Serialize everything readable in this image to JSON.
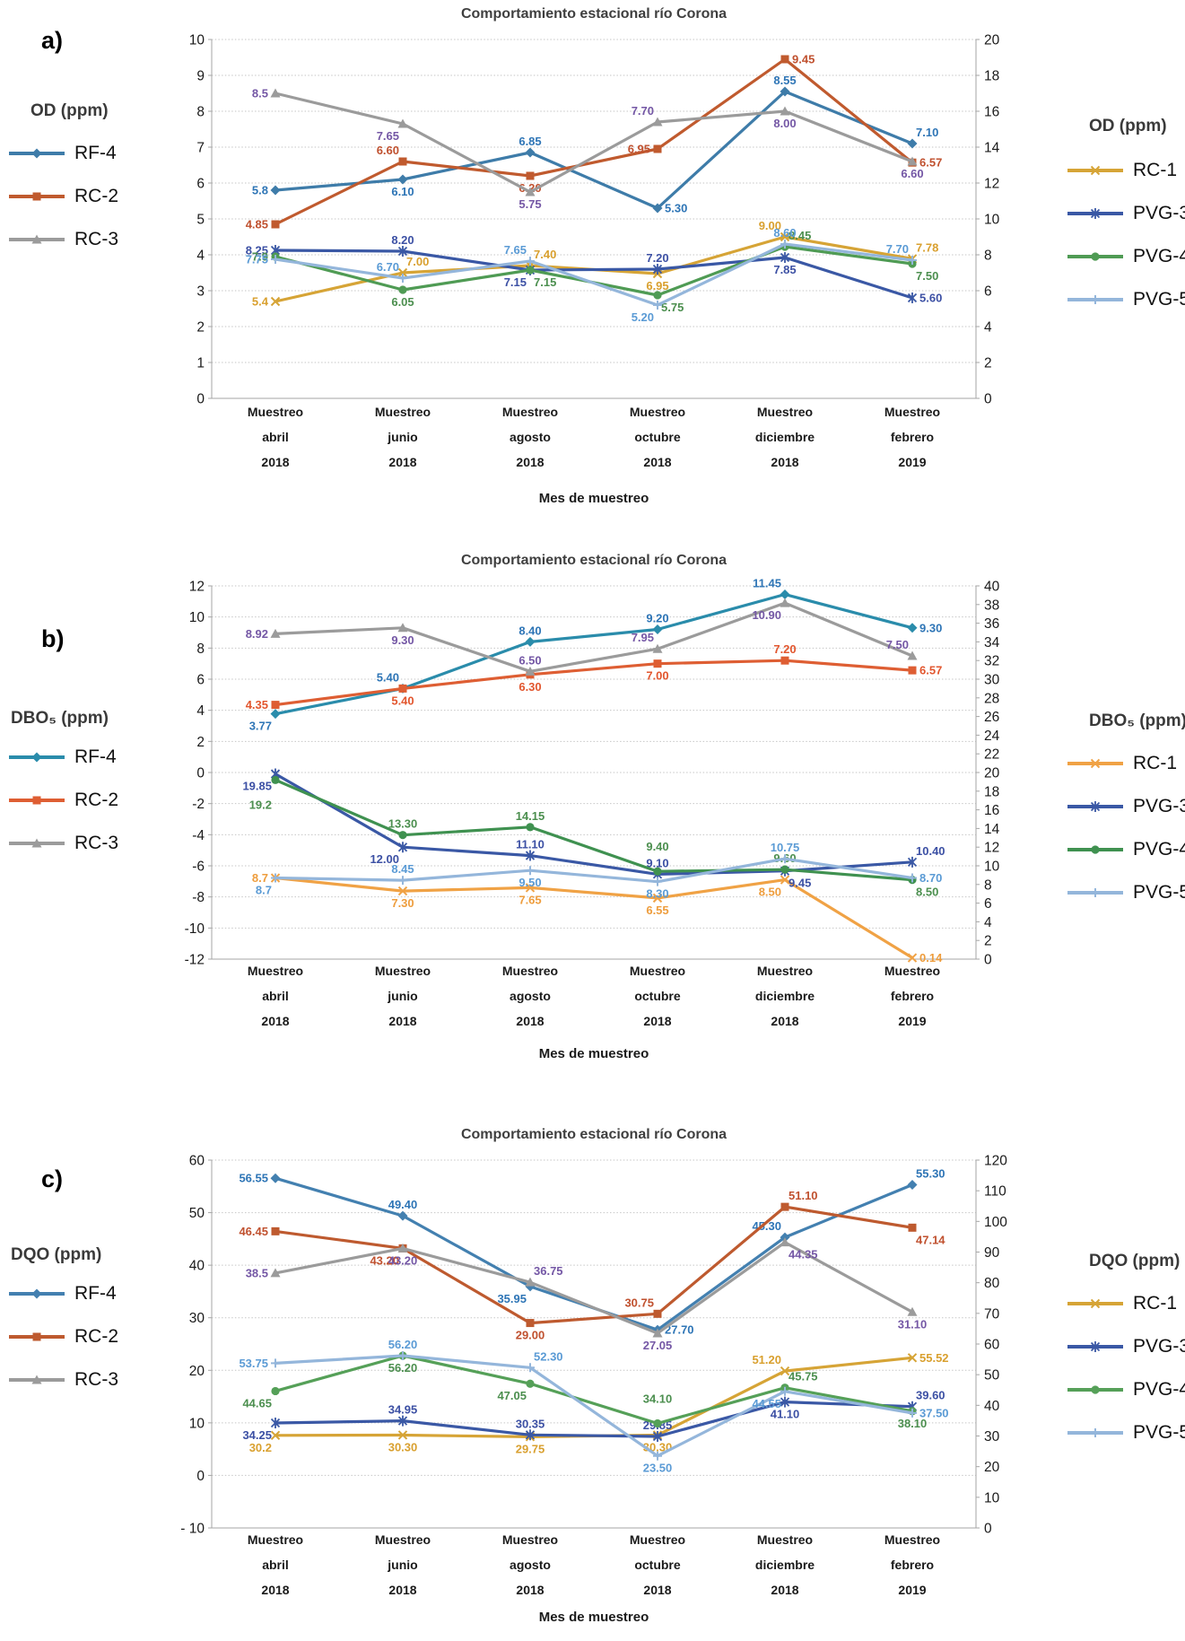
{
  "chart_data": [
    {
      "id": "a",
      "panel_letter": "a)",
      "type": "line",
      "title": "Comportamiento estacional río Corona",
      "xlabel": "Mes de muestreo",
      "left_axis": {
        "label": "OD (ppm)",
        "min": 0,
        "max": 10,
        "step": 1
      },
      "right_axis": {
        "label": "OD (ppm)",
        "min": 0,
        "max": 20,
        "step": 2
      },
      "categories": [
        [
          "Muestreo",
          "abril",
          "2018"
        ],
        [
          "Muestreo",
          "junio",
          "2018"
        ],
        [
          "Muestreo",
          "agosto",
          "2018"
        ],
        [
          "Muestreo",
          "octubre",
          "2018"
        ],
        [
          "Muestreo",
          "diciembre",
          "2018"
        ],
        [
          "Muestreo",
          "febrero",
          "2019"
        ]
      ],
      "grid": true,
      "legend_left_items": [
        0,
        1,
        2
      ],
      "legend_right_items": [
        3,
        4,
        5,
        6
      ],
      "series": [
        {
          "name": "RF-4",
          "axis": "left",
          "marker": "diamond",
          "color": "#3E7CA9",
          "label_color": "#2E75B6",
          "values": [
            5.8,
            6.1,
            6.85,
            5.3,
            8.55,
            7.1
          ],
          "labels": [
            "5.8",
            "6.10",
            "6.85",
            "5.30",
            "8.55",
            "7.10"
          ],
          "label_pos": [
            "left",
            "below",
            "above",
            "right",
            "above",
            "above-right"
          ]
        },
        {
          "name": "RC-2",
          "axis": "left",
          "marker": "square",
          "color": "#C05A2E",
          "label_color": "#C0512F",
          "values": [
            4.85,
            6.6,
            6.2,
            6.95,
            9.45,
            6.57
          ],
          "labels": [
            "4.85",
            "6.60",
            "6.20",
            "6.95",
            "9.45",
            "6.57"
          ],
          "label_pos": [
            "left",
            "above-left",
            "below",
            "left",
            "right",
            "right"
          ]
        },
        {
          "name": "RC-3",
          "axis": "left",
          "marker": "triangle",
          "color": "#9B9B9B",
          "label_color": "#7457A5",
          "values": [
            8.5,
            7.65,
            5.75,
            7.7,
            8.0,
            6.6
          ],
          "labels": [
            "8.5",
            "7.65",
            "5.75",
            "7.70",
            "8.00",
            "6.60"
          ],
          "label_pos": [
            "left",
            "below-left",
            "below",
            "above-left",
            "below",
            "below"
          ]
        },
        {
          "name": "RC-1",
          "axis": "right",
          "marker": "x",
          "color": "#D6A436",
          "label_color": "#D9A02F",
          "values": [
            5.4,
            7.0,
            7.4,
            6.95,
            9.0,
            7.78
          ],
          "labels": [
            "5.4",
            "7.00",
            "7.40",
            "6.95",
            "9.00",
            "7.78"
          ],
          "label_pos": [
            "left",
            "above-right",
            "above-right",
            "below",
            "above-left",
            "above-right"
          ]
        },
        {
          "name": "PVG-3",
          "axis": "right",
          "marker": "star",
          "color": "#3A58A5",
          "label_color": "#3C50A4",
          "values": [
            8.25,
            8.2,
            7.15,
            7.2,
            7.85,
            5.6
          ],
          "labels": [
            "8.25",
            "8.20",
            "7.15",
            "7.20",
            "7.85",
            "5.60"
          ],
          "label_pos": [
            "left",
            "above",
            "below-left",
            "above",
            "below",
            "right"
          ]
        },
        {
          "name": "PVG-4",
          "axis": "right",
          "marker": "circle",
          "color": "#4F9B54",
          "label_color": "#4C8F4F",
          "values": [
            7.9,
            6.05,
            7.15,
            5.75,
            8.45,
            7.5
          ],
          "labels": [
            "7.9",
            "6.05",
            "7.15",
            "5.75",
            "8.45",
            "7.50"
          ],
          "label_pos": [
            "left",
            "below",
            "below-right",
            "below-right",
            "above-right",
            "below-right"
          ]
        },
        {
          "name": "PVG-5",
          "axis": "right",
          "marker": "plus",
          "color": "#94B6DB",
          "label_color": "#5B9BD5",
          "values": [
            7.75,
            6.7,
            7.65,
            5.2,
            8.6,
            7.7
          ],
          "labels": [
            "7.75",
            "6.70",
            "7.65",
            "5.20",
            "8.60",
            "7.70"
          ],
          "label_pos": [
            "left",
            "above-left",
            "above-left",
            "below-left",
            "above",
            "above-left"
          ]
        }
      ]
    },
    {
      "id": "b",
      "panel_letter": "b)",
      "type": "line",
      "title": "Comportamiento estacional río Corona",
      "xlabel": "Mes de muestreo",
      "left_axis": {
        "label": "DBO₅ (ppm)",
        "min": -12,
        "max": 12,
        "step": 2
      },
      "right_axis": {
        "label": "DBO₅ (ppm)",
        "min": 0,
        "max": 40,
        "step": 2
      },
      "categories": [
        [
          "Muestreo",
          "abril",
          "2018"
        ],
        [
          "Muestreo",
          "junio",
          "2018"
        ],
        [
          "Muestreo",
          "agosto",
          "2018"
        ],
        [
          "Muestreo",
          "octubre",
          "2018"
        ],
        [
          "Muestreo",
          "diciembre",
          "2018"
        ],
        [
          "Muestreo",
          "febrero",
          "2019"
        ]
      ],
      "grid": true,
      "legend_left_items": [
        0,
        1,
        2
      ],
      "legend_right_items": [
        3,
        4,
        5,
        6
      ],
      "series": [
        {
          "name": "RF-4",
          "axis": "left",
          "marker": "diamond",
          "color": "#2A8CAB",
          "label_color": "#2E75B6",
          "values": [
            3.77,
            5.4,
            8.4,
            9.2,
            11.45,
            9.3
          ],
          "labels": [
            "3.77",
            "5.40",
            "8.40",
            "9.20",
            "11.45",
            "9.30"
          ],
          "label_pos": [
            "below-left",
            "above-left",
            "above",
            "above",
            "above-left",
            "right"
          ]
        },
        {
          "name": "RC-2",
          "axis": "left",
          "marker": "square",
          "color": "#DE5E33",
          "label_color": "#E2562E",
          "values": [
            4.35,
            5.4,
            6.3,
            7.0,
            7.2,
            6.57
          ],
          "labels": [
            "4.35",
            "5.40",
            "6.30",
            "7.00",
            "7.20",
            "6.57"
          ],
          "label_pos": [
            "left",
            "below",
            "below",
            "below",
            "above",
            "right"
          ]
        },
        {
          "name": "RC-3",
          "axis": "left",
          "marker": "triangle",
          "color": "#9B9B9B",
          "label_color": "#7457A5",
          "values": [
            8.92,
            9.3,
            6.5,
            7.95,
            10.9,
            7.5
          ],
          "labels": [
            "8.92",
            "9.30",
            "6.50",
            "7.95",
            "10.90",
            "7.50"
          ],
          "label_pos": [
            "left",
            "below",
            "above",
            "above-left",
            "below-left",
            "above-left"
          ]
        },
        {
          "name": "RC-1",
          "axis": "right",
          "marker": "x",
          "color": "#F0A245",
          "label_color": "#EE9D3D",
          "values": [
            8.7,
            7.3,
            7.65,
            6.55,
            8.5,
            0.14
          ],
          "labels": [
            "8.7",
            "7.30",
            "7.65",
            "6.55",
            "8.50",
            "0.14"
          ],
          "label_pos": [
            "left",
            "below",
            "below",
            "below",
            "below-left",
            "right"
          ]
        },
        {
          "name": "PVG-3",
          "axis": "right",
          "marker": "star",
          "color": "#3A58A5",
          "label_color": "#3C50A4",
          "values": [
            19.85,
            12.0,
            11.1,
            9.1,
            9.45,
            10.4
          ],
          "labels": [
            "19.85",
            "12.00",
            "11.10",
            "9.10",
            "9.45",
            "10.40"
          ],
          "label_pos": [
            "below-left",
            "below-left",
            "above",
            "above",
            "below-right",
            "above-right"
          ]
        },
        {
          "name": "PVG-4",
          "axis": "right",
          "marker": "circle",
          "color": "#3F9150",
          "label_color": "#4C8F4F",
          "values": [
            19.2,
            13.3,
            14.15,
            9.4,
            9.6,
            8.5
          ],
          "labels": [
            "19.2",
            "13.30",
            "14.15",
            "9.40",
            "9.60",
            "8.50"
          ],
          "label_pos": [
            "below-left2",
            "above",
            "above",
            "above2",
            "above",
            "below-right"
          ]
        },
        {
          "name": "PVG-5",
          "axis": "right",
          "marker": "plus",
          "color": "#94B6DB",
          "label_color": "#5B9BD5",
          "values": [
            8.7,
            8.45,
            9.5,
            8.3,
            10.75,
            8.7
          ],
          "labels": [
            "8.7",
            "8.45",
            "9.50",
            "8.30",
            "10.75",
            "8.70"
          ],
          "label_pos": [
            "below-left",
            "above",
            "below",
            "below",
            "above",
            "right"
          ]
        }
      ]
    },
    {
      "id": "c",
      "panel_letter": "c)",
      "type": "line",
      "title": "Comportamiento estacional río Corona",
      "xlabel": "Mes de muestreo",
      "left_axis": {
        "label": "DQO (ppm)",
        "min": -10,
        "max": 60,
        "step": 10
      },
      "right_axis": {
        "label": "DQO (ppm)",
        "min": 0,
        "max": 120,
        "step": 10
      },
      "categories": [
        [
          "Muestreo",
          "abril",
          "2018"
        ],
        [
          "Muestreo",
          "junio",
          "2018"
        ],
        [
          "Muestreo",
          "agosto",
          "2018"
        ],
        [
          "Muestreo",
          "octubre",
          "2018"
        ],
        [
          "Muestreo",
          "diciembre",
          "2018"
        ],
        [
          "Muestreo",
          "febrero",
          "2019"
        ]
      ],
      "grid": true,
      "legend_left_items": [
        0,
        1,
        2
      ],
      "legend_right_items": [
        3,
        4,
        5,
        6
      ],
      "series": [
        {
          "name": "RF-4",
          "axis": "left",
          "marker": "diamond",
          "color": "#4380B0",
          "label_color": "#2E75B6",
          "values": [
            56.55,
            49.4,
            35.95,
            27.7,
            45.3,
            55.3
          ],
          "labels": [
            "56.55",
            "49.40",
            "35.95",
            "27.70",
            "45.30",
            "55.30"
          ],
          "label_pos": [
            "left",
            "above",
            "below-left",
            "right",
            "above-left",
            "above-right"
          ]
        },
        {
          "name": "RC-2",
          "axis": "left",
          "marker": "square",
          "color": "#BE5A2F",
          "label_color": "#C0512F",
          "values": [
            46.45,
            43.2,
            29.0,
            30.75,
            51.1,
            47.14
          ],
          "labels": [
            "46.45",
            "43.20",
            "29.00",
            "30.75",
            "51.10",
            "47.14"
          ],
          "label_pos": [
            "left",
            "below-left",
            "below",
            "above-left",
            "above-right",
            "below-right"
          ]
        },
        {
          "name": "RC-3",
          "axis": "left",
          "marker": "triangle",
          "color": "#9B9B9B",
          "label_color": "#7457A5",
          "values": [
            38.5,
            43.2,
            36.75,
            27.05,
            44.35,
            31.1
          ],
          "labels": [
            "38.5",
            "43.20",
            "36.75",
            "27.05",
            "44.35",
            "31.10"
          ],
          "label_pos": [
            "left",
            "below",
            "above-right",
            "below",
            "below-right",
            "below"
          ]
        },
        {
          "name": "RC-1",
          "axis": "right",
          "marker": "x",
          "color": "#D6A436",
          "label_color": "#D9A02F",
          "values": [
            30.2,
            30.3,
            29.75,
            30.3,
            51.2,
            55.52
          ],
          "labels": [
            "30.2",
            "30.30",
            "29.75",
            "30.30",
            "51.20",
            "55.52"
          ],
          "label_pos": [
            "below-left",
            "below",
            "below",
            "below",
            "above-left",
            "right"
          ]
        },
        {
          "name": "PVG-3",
          "axis": "right",
          "marker": "star",
          "color": "#3A58A5",
          "label_color": "#3C50A4",
          "values": [
            34.25,
            34.95,
            30.35,
            29.85,
            41.1,
            39.6
          ],
          "labels": [
            "34.25",
            "34.95",
            "30.35",
            "29.85",
            "41.10",
            "39.60"
          ],
          "label_pos": [
            "below-left",
            "above",
            "above",
            "above",
            "below",
            "above-right"
          ]
        },
        {
          "name": "PVG-4",
          "axis": "right",
          "marker": "circle",
          "color": "#55A058",
          "label_color": "#4C8F4F",
          "values": [
            44.65,
            56.2,
            47.05,
            34.1,
            45.75,
            38.1
          ],
          "labels": [
            "44.65",
            "56.20",
            "47.05",
            "34.10",
            "45.75",
            "38.10"
          ],
          "label_pos": [
            "below-left",
            "below",
            "below-left",
            "above2",
            "above-right",
            "below"
          ]
        },
        {
          "name": "PVG-5",
          "axis": "right",
          "marker": "plus",
          "color": "#94B6DB",
          "label_color": "#5B9BD5",
          "values": [
            53.75,
            56.2,
            52.3,
            23.5,
            44.55,
            37.5
          ],
          "labels": [
            "53.75",
            "56.20",
            "52.30",
            "23.50",
            "44.55",
            "37.50"
          ],
          "label_pos": [
            "left",
            "above",
            "above-right",
            "below",
            "below-left",
            "right"
          ]
        }
      ]
    }
  ]
}
